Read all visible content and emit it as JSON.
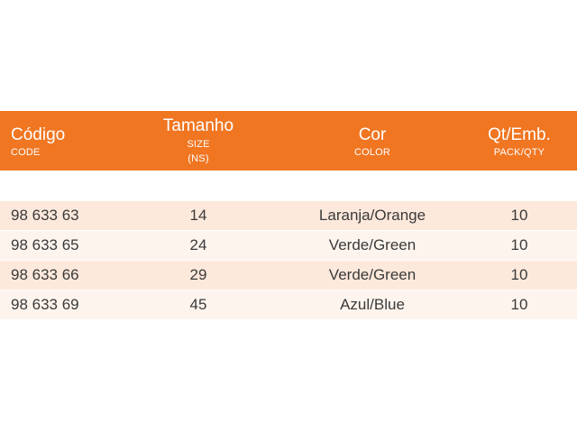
{
  "header": {
    "code": {
      "label": "Código",
      "sub": "CODE"
    },
    "size": {
      "label": "Tamanho",
      "sub": "SIZE",
      "sub2": "(NS)"
    },
    "color": {
      "label": "Cor",
      "sub": "COLOR"
    },
    "qty": {
      "label": "Qt/Emb.",
      "sub": "PACK/QTY"
    }
  },
  "rows": [
    {
      "code": "98 633 63",
      "size": "14",
      "color": "Laranja/Orange",
      "qty": "10"
    },
    {
      "code": "98 633 65",
      "size": "24",
      "color": "Verde/Green",
      "qty": "10"
    },
    {
      "code": "98 633 66",
      "size": "29",
      "color": "Verde/Green",
      "qty": "10"
    },
    {
      "code": "98 633 69",
      "size": "45",
      "color": "Azul/Blue",
      "qty": "10"
    }
  ],
  "colors": {
    "header_bg": "#f07622",
    "row_odd_bg": "#fde9dc",
    "row_even_bg": "#fdf4ee",
    "text": "#3a3a3a"
  }
}
